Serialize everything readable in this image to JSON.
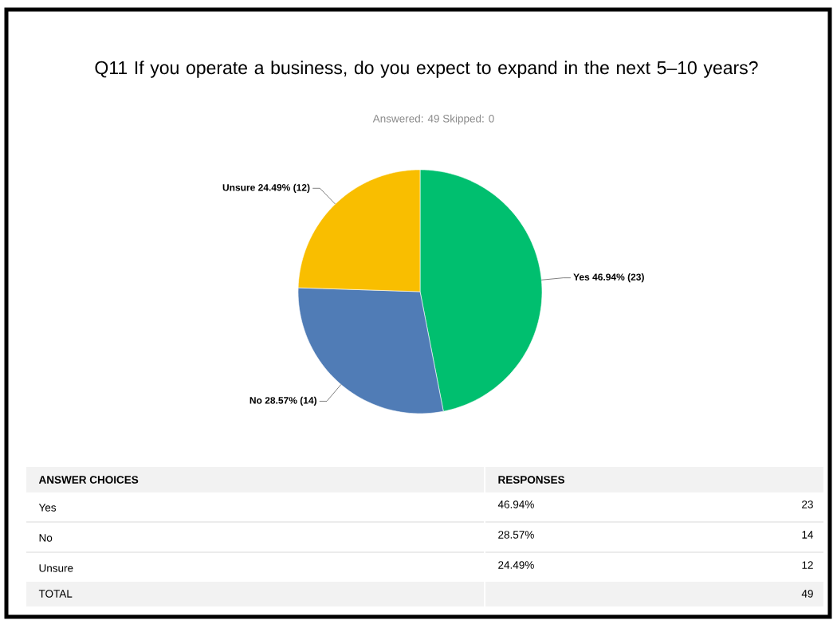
{
  "chart_data": {
    "type": "pie",
    "title": "Q11 If you operate a business, do you expect to expand in the next 5–10 years?",
    "subtitle": "Answered: 49    Skipped: 0",
    "categories": [
      "Yes",
      "No",
      "Unsure"
    ],
    "values": [
      23,
      14,
      12
    ],
    "colors": [
      "#00bf6f",
      "#507cb6",
      "#f9be00"
    ],
    "value_labels": [
      "46.94% (23)",
      "28.57% (14)",
      "24.49% (12)"
    ],
    "annotations": [
      "ANSWER CHOICES",
      "RESPONSES",
      "46.94%",
      "28.57%",
      "24.49%",
      "TOTAL",
      "49",
      "23",
      "14",
      "12"
    ]
  }
}
